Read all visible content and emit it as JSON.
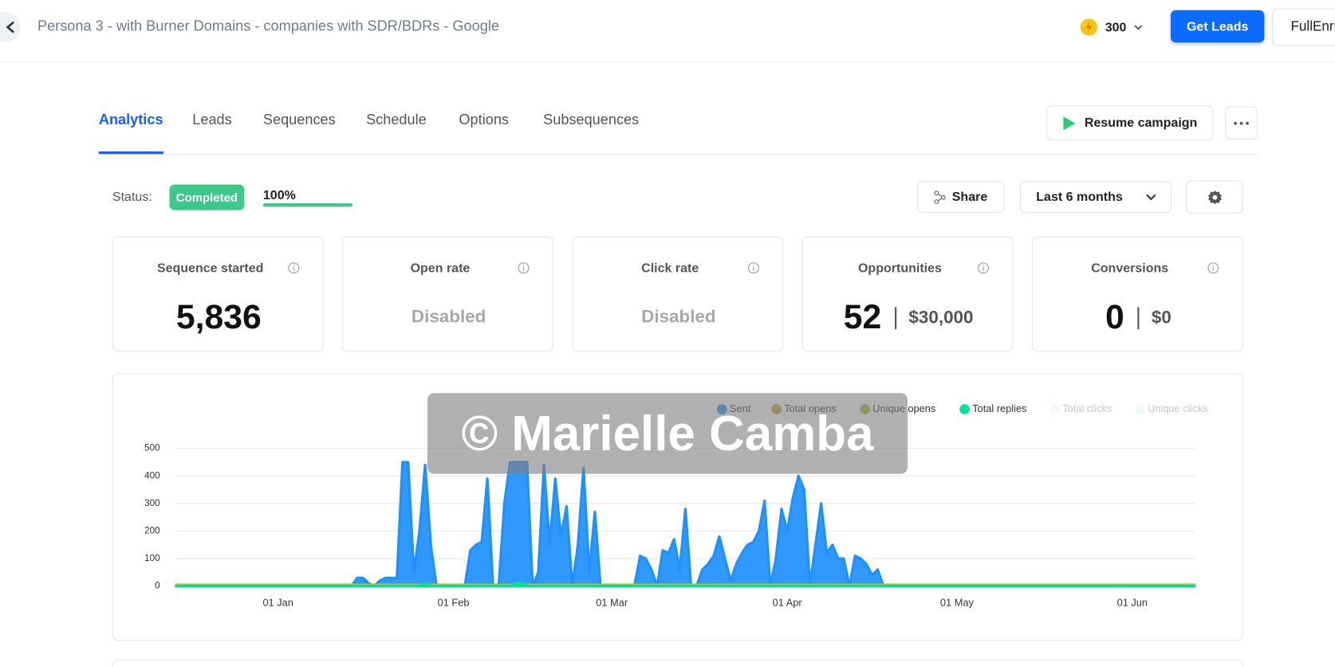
{
  "header": {
    "title": "Persona 3 - with Burner Domains - companies with SDR/BDRs - Google",
    "credits": "300",
    "get_leads": "Get Leads",
    "account": "FullEnri"
  },
  "tabs": [
    "Analytics",
    "Leads",
    "Sequences",
    "Schedule",
    "Options",
    "Subsequences"
  ],
  "actions": {
    "resume": "Resume campaign"
  },
  "status": {
    "label": "Status:",
    "state": "Completed",
    "progress": {
      "value": 100,
      "label": "100%"
    }
  },
  "toolbar": {
    "share": "Share",
    "range": "Last 6 months"
  },
  "cards": [
    {
      "title": "Sequence started",
      "value": "5,836"
    },
    {
      "title": "Open rate",
      "value": "Disabled"
    },
    {
      "title": "Click rate",
      "value": "Disabled"
    },
    {
      "title": "Opportunities",
      "value": "52",
      "amount": "$30,000"
    },
    {
      "title": "Conversions",
      "value": "0",
      "amount": "$0"
    }
  ],
  "watermark": "© Marielle Camba",
  "chart_data": {
    "type": "area",
    "categories": [
      null,
      null,
      null,
      null,
      null,
      null,
      null,
      null,
      null,
      null,
      null,
      null,
      null,
      null,
      null,
      null,
      null,
      null,
      "01 Jan",
      null,
      null,
      null,
      null,
      null,
      null,
      null,
      null,
      null,
      null,
      null,
      null,
      null,
      null,
      null,
      null,
      null,
      null,
      null,
      null,
      null,
      null,
      null,
      null,
      null,
      null,
      null,
      null,
      null,
      null,
      "01 Feb",
      null,
      null,
      null,
      null,
      null,
      null,
      null,
      null,
      null,
      null,
      null,
      null,
      null,
      null,
      null,
      null,
      null,
      null,
      null,
      null,
      null,
      null,
      null,
      null,
      null,
      null,
      null,
      "01 Mar",
      null,
      null,
      null,
      null,
      null,
      null,
      null,
      null,
      null,
      null,
      null,
      null,
      null,
      null,
      null,
      null,
      null,
      null,
      null,
      null,
      null,
      null,
      null,
      null,
      null,
      null,
      null,
      null,
      null,
      null,
      "01 Apr",
      null,
      null,
      null,
      null,
      null,
      null,
      null,
      null,
      null,
      null,
      null,
      null,
      null,
      null,
      null,
      null,
      null,
      null,
      null,
      null,
      null,
      null,
      null,
      null,
      null,
      null,
      null,
      null,
      null,
      "01 May",
      null,
      null,
      null,
      null,
      null,
      null,
      null,
      null,
      null,
      null,
      null,
      null,
      null,
      null,
      null,
      null,
      null,
      null,
      null,
      null,
      null,
      null,
      null,
      null,
      null,
      null,
      null,
      null,
      null,
      null,
      "01 Jun",
      null,
      null,
      null,
      null,
      null,
      null,
      null,
      null,
      null,
      null,
      null
    ],
    "series": [
      {
        "name": "Sent",
        "color": "#1e90ff",
        "values": [
          0,
          0,
          0,
          0,
          0,
          0,
          0,
          0,
          0,
          0,
          0,
          0,
          0,
          0,
          0,
          0,
          0,
          0,
          0,
          0,
          0,
          0,
          0,
          0,
          0,
          0,
          0,
          0,
          0,
          0,
          0,
          0,
          30,
          30,
          10,
          0,
          20,
          30,
          30,
          30,
          450,
          450,
          50,
          200,
          440,
          150,
          0,
          0,
          0,
          0,
          0,
          0,
          130,
          150,
          160,
          390,
          0,
          0,
          300,
          450,
          450,
          450,
          450,
          0,
          50,
          440,
          150,
          390,
          180,
          290,
          0,
          150,
          430,
          50,
          270,
          0,
          0,
          0,
          0,
          0,
          0,
          0,
          110,
          100,
          60,
          0,
          130,
          120,
          170,
          60,
          280,
          0,
          0,
          60,
          80,
          110,
          180,
          100,
          20,
          80,
          120,
          150,
          160,
          200,
          310,
          0,
          100,
          280,
          200,
          320,
          400,
          350,
          0,
          150,
          300,
          120,
          150,
          100,
          100,
          0,
          110,
          100,
          80,
          40,
          60,
          0,
          0,
          0,
          0,
          0,
          0,
          0,
          0,
          0,
          0,
          0,
          0,
          0,
          0,
          0,
          0,
          0,
          0,
          0,
          0,
          0,
          0,
          0,
          0,
          0,
          0,
          0,
          0,
          0,
          0,
          0,
          0,
          0,
          0,
          0,
          0,
          0,
          0,
          0,
          0,
          0,
          0,
          0,
          0,
          0,
          0,
          0,
          0,
          0,
          0,
          0,
          0,
          0,
          0,
          0,
          0
        ]
      },
      {
        "name": "Total opens",
        "color": "#c9a640",
        "values": [
          5,
          5,
          5,
          5,
          5,
          5,
          5,
          5,
          5,
          5,
          5,
          5,
          5,
          5,
          5,
          5,
          5,
          5,
          5,
          5,
          5,
          5,
          5,
          5,
          5,
          5,
          5,
          5,
          5,
          5,
          5,
          5,
          5,
          5,
          5,
          5,
          5,
          5,
          5,
          5,
          5,
          5,
          5,
          5,
          5,
          5,
          5,
          5,
          5,
          5,
          5,
          5,
          5,
          5,
          5,
          5,
          5,
          5,
          5,
          5,
          5,
          5,
          5,
          5,
          5,
          5,
          5,
          5,
          5,
          5,
          5,
          5,
          5,
          5,
          5,
          5,
          5,
          5,
          5,
          5,
          5,
          5,
          5,
          5,
          5,
          5,
          5,
          5,
          5,
          5,
          5,
          5,
          5,
          5,
          5,
          5,
          5,
          5,
          5,
          5,
          5,
          5,
          5,
          5,
          5,
          5,
          5,
          5,
          5,
          5,
          5,
          5,
          5,
          5,
          5,
          5,
          5,
          5,
          5,
          5,
          5,
          5,
          5,
          5,
          5,
          5,
          5,
          5,
          5,
          5,
          5,
          5,
          5,
          5,
          5,
          5,
          5,
          5,
          5,
          5,
          5,
          5,
          5,
          5,
          5,
          5,
          5,
          5,
          5,
          5,
          5,
          5,
          5,
          5,
          5,
          5,
          5,
          5,
          5,
          5,
          5,
          5,
          5,
          5,
          5,
          5,
          5,
          5,
          5,
          5,
          5,
          5,
          5,
          5,
          5,
          5,
          5,
          5,
          5,
          5,
          5
        ]
      },
      {
        "name": "Unique opens",
        "color": "#9bc53d",
        "values": [
          3,
          3,
          3,
          3,
          3,
          3,
          3,
          3,
          3,
          3,
          3,
          3,
          3,
          3,
          3,
          3,
          3,
          3,
          3,
          3,
          3,
          3,
          3,
          3,
          3,
          3,
          3,
          3,
          3,
          3,
          3,
          3,
          3,
          3,
          3,
          3,
          3,
          3,
          3,
          3,
          3,
          3,
          3,
          3,
          3,
          3,
          3,
          3,
          3,
          3,
          3,
          3,
          3,
          3,
          3,
          3,
          3,
          3,
          3,
          3,
          3,
          3,
          3,
          3,
          3,
          3,
          3,
          3,
          3,
          3,
          3,
          3,
          3,
          3,
          3,
          3,
          3,
          3,
          3,
          3,
          3,
          3,
          3,
          3,
          3,
          3,
          3,
          3,
          3,
          3,
          3,
          3,
          3,
          3,
          3,
          3,
          3,
          3,
          3,
          3,
          3,
          3,
          3,
          3,
          3,
          3,
          3,
          3,
          3,
          3,
          3,
          3,
          3,
          3,
          3,
          3,
          3,
          3,
          3,
          3,
          3,
          3,
          3,
          3,
          3,
          3,
          3,
          3,
          3,
          3,
          3,
          3,
          3,
          3,
          3,
          3,
          3,
          3,
          3,
          3,
          3,
          3,
          3,
          3,
          3,
          3,
          3,
          3,
          3,
          3,
          3,
          3,
          3,
          3,
          3,
          3,
          3,
          3,
          3,
          3,
          3,
          3,
          3,
          3,
          3,
          3,
          3,
          3,
          3,
          3,
          3,
          3,
          3,
          3,
          3,
          3,
          3,
          3,
          3,
          3,
          3
        ]
      },
      {
        "name": "Total replies",
        "color": "#00e396",
        "values": [
          0,
          0,
          0,
          0,
          0,
          0,
          0,
          0,
          0,
          0,
          0,
          0,
          0,
          0,
          0,
          0,
          0,
          0,
          0,
          0,
          0,
          0,
          0,
          0,
          0,
          0,
          0,
          0,
          0,
          0,
          0,
          0,
          0,
          0,
          0,
          0,
          0,
          0,
          0,
          0,
          0,
          0,
          0,
          0,
          10,
          0,
          0,
          0,
          0,
          0,
          0,
          0,
          0,
          0,
          0,
          0,
          0,
          0,
          0,
          0,
          10,
          10,
          0,
          0,
          0,
          0,
          0,
          0,
          0,
          0,
          0,
          0,
          0,
          0,
          0,
          0,
          0,
          0,
          0,
          0,
          0,
          0,
          0,
          0,
          0,
          0,
          0,
          0,
          0,
          0,
          0,
          0,
          0,
          0,
          0,
          0,
          0,
          0,
          0,
          0,
          0,
          0,
          0,
          0,
          0,
          0,
          0,
          0,
          0,
          0,
          0,
          0,
          0,
          0,
          0,
          0,
          0,
          0,
          0,
          0,
          0,
          0,
          0,
          0,
          0,
          0,
          0,
          0,
          0,
          0,
          0,
          0,
          0,
          0,
          0,
          0,
          0,
          0,
          0,
          0,
          0,
          0,
          0,
          0,
          0,
          0,
          0,
          0,
          0,
          0,
          0,
          0,
          0,
          0,
          0,
          0,
          0,
          0,
          0,
          0,
          0,
          0,
          0,
          0,
          0,
          0,
          0,
          0,
          0,
          0,
          0,
          0,
          0,
          0,
          0,
          0,
          0,
          0,
          0,
          0,
          0
        ]
      },
      {
        "name": "Total clicks",
        "color": "#e6f4f8",
        "hidden": true,
        "values": [
          0,
          0,
          0,
          0,
          0,
          0,
          0,
          0,
          0,
          0,
          0,
          0,
          0,
          0,
          0,
          0,
          0,
          0,
          0,
          0,
          0,
          0,
          0,
          0,
          0,
          0,
          0,
          0,
          0,
          0,
          0,
          0,
          0,
          0,
          0,
          0,
          0,
          0,
          0,
          0,
          0,
          0,
          0,
          0,
          0,
          0,
          0,
          0,
          0,
          0,
          0,
          0,
          0,
          0,
          0,
          0,
          0,
          0,
          0,
          0,
          0,
          0,
          0,
          0,
          0,
          0,
          0,
          0,
          0,
          0,
          0,
          0,
          0,
          0,
          0,
          0,
          0,
          0,
          0,
          0,
          0,
          0,
          0,
          0,
          0,
          0,
          0,
          0,
          0,
          0,
          0,
          0,
          0,
          0,
          0,
          0,
          0,
          0,
          0,
          0,
          0,
          0,
          0,
          0,
          0,
          0,
          0,
          0,
          0,
          0,
          0,
          0,
          0,
          0,
          0,
          0,
          0,
          0,
          0,
          0,
          0,
          0,
          0,
          0,
          0,
          0,
          0,
          0,
          0,
          0,
          0,
          0,
          0,
          0,
          0,
          0,
          0,
          0,
          0,
          0,
          0,
          0,
          0,
          0,
          0,
          0,
          0,
          0,
          0,
          0,
          0,
          0,
          0,
          0,
          0,
          0,
          0,
          0,
          0,
          0,
          0,
          0,
          0,
          0,
          0,
          0,
          0,
          0,
          0,
          0,
          0,
          0,
          0,
          0,
          0,
          0,
          0,
          0,
          0,
          0,
          0
        ]
      },
      {
        "name": "Unique clicks",
        "color": "#e6f4f8",
        "hidden": true,
        "values": [
          0,
          0,
          0,
          0,
          0,
          0,
          0,
          0,
          0,
          0,
          0,
          0,
          0,
          0,
          0,
          0,
          0,
          0,
          0,
          0,
          0,
          0,
          0,
          0,
          0,
          0,
          0,
          0,
          0,
          0,
          0,
          0,
          0,
          0,
          0,
          0,
          0,
          0,
          0,
          0,
          0,
          0,
          0,
          0,
          0,
          0,
          0,
          0,
          0,
          0,
          0,
          0,
          0,
          0,
          0,
          0,
          0,
          0,
          0,
          0,
          0,
          0,
          0,
          0,
          0,
          0,
          0,
          0,
          0,
          0,
          0,
          0,
          0,
          0,
          0,
          0,
          0,
          0,
          0,
          0,
          0,
          0,
          0,
          0,
          0,
          0,
          0,
          0,
          0,
          0,
          0,
          0,
          0,
          0,
          0,
          0,
          0,
          0,
          0,
          0,
          0,
          0,
          0,
          0,
          0,
          0,
          0,
          0,
          0,
          0,
          0,
          0,
          0,
          0,
          0,
          0,
          0,
          0,
          0,
          0,
          0,
          0,
          0,
          0,
          0,
          0,
          0,
          0,
          0,
          0,
          0,
          0,
          0,
          0,
          0,
          0,
          0,
          0,
          0,
          0,
          0,
          0,
          0,
          0,
          0,
          0,
          0,
          0,
          0,
          0,
          0,
          0,
          0,
          0,
          0,
          0,
          0,
          0,
          0,
          0,
          0,
          0,
          0,
          0,
          0,
          0,
          0,
          0,
          0,
          0,
          0,
          0,
          0,
          0,
          0,
          0,
          0,
          0,
          0,
          0,
          0
        ]
      }
    ],
    "ylim": [
      0,
      500
    ],
    "yticks": [
      0,
      100,
      200,
      300,
      400,
      500
    ],
    "grid": true,
    "legend": "top-right"
  }
}
